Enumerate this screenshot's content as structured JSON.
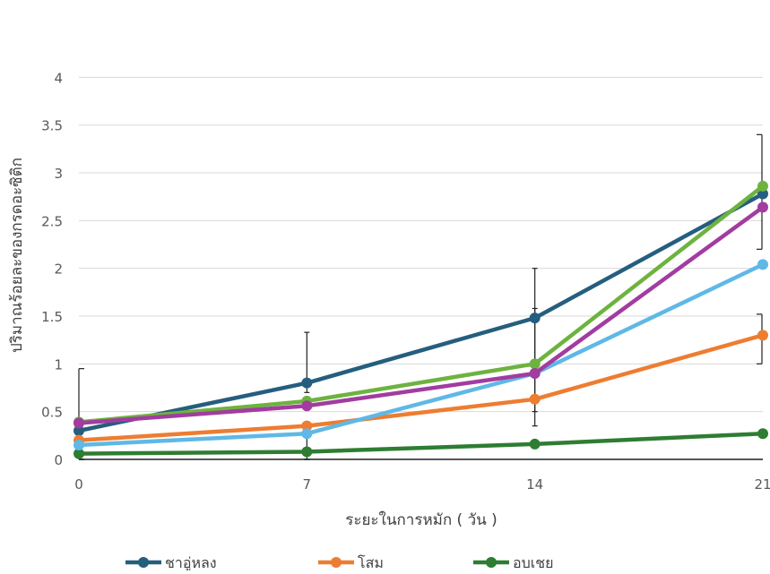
{
  "chart_data": {
    "type": "line",
    "title": "",
    "xlabel": "ระยะในการหมัก ( วัน )",
    "ylabel": "ปริมาณร้อยละของกรดอะซิติก",
    "x": [
      0,
      7,
      14,
      21
    ],
    "xlim": [
      0,
      21
    ],
    "ylim": [
      0,
      4.5
    ],
    "yticks": [
      0,
      0.5,
      1,
      1.5,
      2,
      2.5,
      3,
      3.5,
      4
    ],
    "grid": true,
    "legend_position": "bottom",
    "series": [
      {
        "name": "ชาอู่หลง",
        "color": "#255E7E",
        "values": [
          0.3,
          0.8,
          1.48,
          2.78
        ],
        "in_legend": true
      },
      {
        "name": "โสม",
        "color": "#ED7D31",
        "values": [
          0.2,
          0.35,
          0.63,
          1.3
        ],
        "in_legend": true
      },
      {
        "name": "อบเชย",
        "color": "#2E7D32",
        "values": [
          0.06,
          0.08,
          0.16,
          0.27
        ],
        "in_legend": true
      },
      {
        "name": "",
        "color": "#5FB8E6",
        "values": [
          0.15,
          0.27,
          0.9,
          2.04
        ],
        "in_legend": false
      },
      {
        "name": "",
        "color": "#6DB33F",
        "values": [
          0.39,
          0.61,
          1.0,
          2.86
        ],
        "in_legend": false
      },
      {
        "name": "",
        "color": "#A23CA0",
        "values": [
          0.38,
          0.56,
          0.9,
          2.64
        ],
        "in_legend": false
      }
    ],
    "error_bars": [
      {
        "x": 0,
        "low": 0.0,
        "high": 0.95
      },
      {
        "x": 7,
        "low": 0.7,
        "high": 1.33
      },
      {
        "x": 7,
        "low": 0.0,
        "high": 0.3
      },
      {
        "x": 14,
        "low": 0.35,
        "high": 2.0
      },
      {
        "x": 14,
        "low": 0.5,
        "high": 1.58
      },
      {
        "x": 21,
        "low": 2.2,
        "high": 3.4
      },
      {
        "x": 21,
        "low": 1.0,
        "high": 1.52
      }
    ]
  }
}
